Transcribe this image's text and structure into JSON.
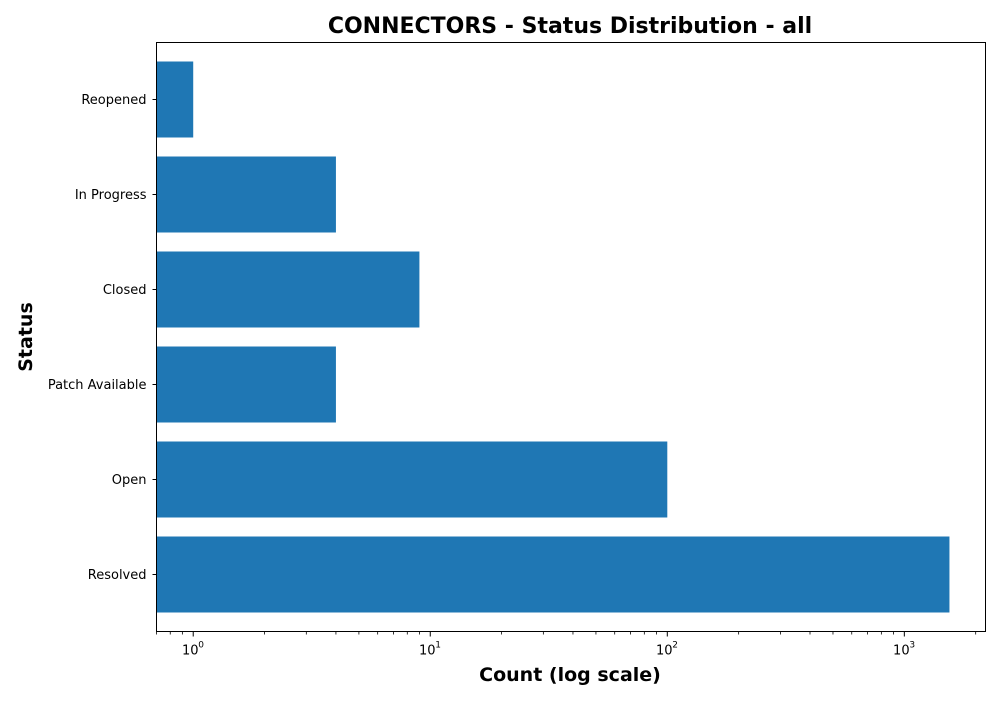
{
  "chart_data": {
    "type": "bar",
    "orientation": "horizontal",
    "title": "CONNECTORS - Status Distribution - all",
    "xlabel": "Count (log scale)",
    "ylabel": "Status",
    "x_scale": "log",
    "xlim": [
      0.7,
      2200
    ],
    "x_ticks": [
      {
        "value": 1,
        "base": "10",
        "exp": "0"
      },
      {
        "value": 10,
        "base": "10",
        "exp": "1"
      },
      {
        "value": 100,
        "base": "10",
        "exp": "2"
      },
      {
        "value": 1000,
        "base": "10",
        "exp": "3"
      }
    ],
    "categories": [
      "Resolved",
      "Open",
      "Patch Available",
      "Closed",
      "In Progress",
      "Reopened"
    ],
    "values": [
      1550,
      100,
      4,
      9,
      4,
      1
    ],
    "bar_color": "#1f77b4",
    "grid": false,
    "legend": false
  }
}
